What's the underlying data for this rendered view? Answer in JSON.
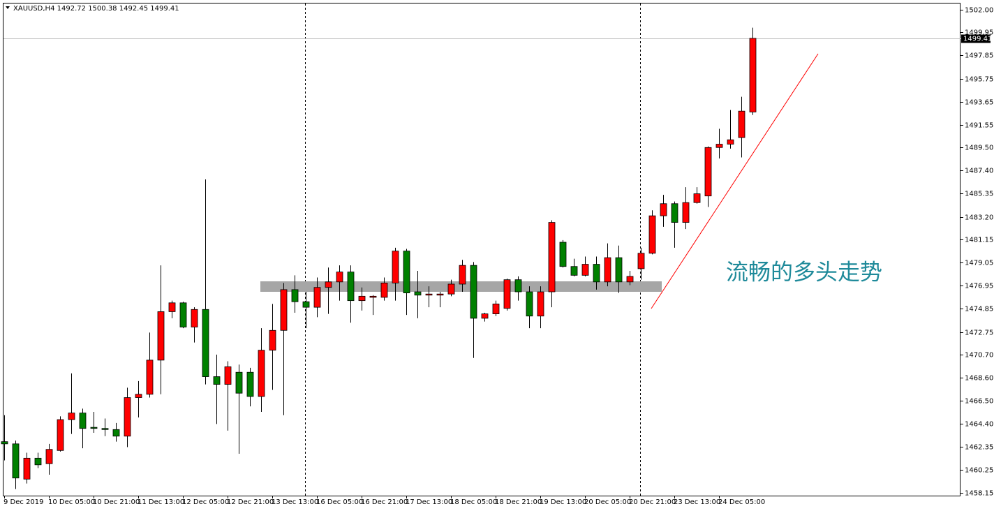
{
  "chart_data": {
    "type": "candlestick",
    "title": "XAUUSD,H4",
    "annotation": "流畅的多头走势",
    "categories": [
      "9 Dec 2019",
      null,
      null,
      null,
      "10 Dec 05:00",
      null,
      null,
      null,
      "10 Dec 21:00",
      null,
      null,
      null,
      "11 Dec 13:00",
      null,
      null,
      null,
      "12 Dec 05:00",
      null,
      null,
      null,
      "12 Dec 21:00",
      null,
      null,
      null,
      "13 Dec 13:00",
      null,
      null,
      null,
      "16 Dec 05:00",
      null,
      null,
      null,
      "16 Dec 21:00",
      null,
      null,
      null,
      "17 Dec 13:00",
      null,
      null,
      null,
      "18 Dec 05:00",
      null,
      null,
      null,
      "18 Dec 21:00",
      null,
      null,
      null,
      "19 Dec 13:00",
      null,
      null,
      null,
      "20 Dec 05:00",
      null,
      null,
      null,
      "20 Dec 21:00",
      null,
      null,
      null,
      "23 Dec 13:00",
      null,
      null,
      null,
      "24 Dec 05:00",
      null,
      null,
      null
    ],
    "open": [
      1462.8,
      1462.6,
      1459.4,
      1461.3,
      1460.8,
      1462.0,
      1464.8,
      1465.4,
      1464.1,
      1464.0,
      1463.9,
      1463.3,
      1466.8,
      1467.1,
      1470.2,
      1474.6,
      1475.4,
      1473.2,
      1474.8,
      1468.7,
      1468.0,
      1469.1,
      1469.1,
      1466.9,
      1471.1,
      1472.9,
      1476.6,
      1475.5,
      1475.0,
      1476.8,
      1477.3,
      1478.2,
      1475.6,
      1475.9,
      1475.9,
      1477.2,
      1480.1,
      1476.4,
      1476.1,
      1476.1,
      1476.2,
      1477.1,
      1478.8,
      1474.0,
      1474.4,
      1474.9,
      1477.5,
      1476.4,
      1474.2,
      1476.4,
      1480.9,
      1478.7,
      1477.9,
      1478.9,
      1477.3,
      1479.5,
      1477.3,
      1478.5,
      1479.9,
      1483.3,
      1484.4,
      1482.7,
      1484.5,
      1485.1,
      1489.5,
      1489.8,
      1490.4,
      1492.72
    ],
    "high": [
      1465.2,
      1462.9,
      1461.8,
      1461.8,
      1462.6,
      1465.1,
      1469.0,
      1465.8,
      1465.5,
      1464.9,
      1464.5,
      1467.7,
      1468.3,
      1472.7,
      1478.8,
      1475.6,
      1475.5,
      1475.0,
      1486.6,
      1470.7,
      1470.1,
      1469.8,
      1469.5,
      1473.1,
      1475.3,
      1477.2,
      1477.9,
      1476.4,
      1477.7,
      1478.6,
      1478.8,
      1478.8,
      1476.8,
      1476.1,
      1477.7,
      1480.4,
      1480.3,
      1478.3,
      1476.9,
      1476.4,
      1477.5,
      1479.3,
      1479.1,
      1474.5,
      1475.6,
      1477.6,
      1477.8,
      1476.9,
      1476.9,
      1482.9,
      1481.1,
      1479.4,
      1479.6,
      1479.6,
      1480.8,
      1480.6,
      1478.3,
      1480.4,
      1483.8,
      1485.2,
      1484.6,
      1485.9,
      1485.9,
      1489.6,
      1491.2,
      1492.9,
      1494.1,
      1500.38
    ],
    "low": [
      1461.1,
      1458.5,
      1459.0,
      1460.4,
      1459.8,
      1461.9,
      1463.5,
      1462.2,
      1463.6,
      1463.3,
      1462.8,
      1462.3,
      1465.0,
      1466.8,
      1467.1,
      1474.0,
      1473.1,
      1471.8,
      1468.0,
      1464.4,
      1463.8,
      1461.7,
      1466.0,
      1465.5,
      1467.5,
      1465.2,
      1474.5,
      1473.1,
      1474.1,
      1474.4,
      1475.6,
      1473.6,
      1474.7,
      1474.3,
      1475.6,
      1475.6,
      1474.3,
      1474.0,
      1475.0,
      1475.0,
      1476.0,
      1476.4,
      1470.4,
      1473.7,
      1474.2,
      1474.7,
      1475.6,
      1473.1,
      1473.1,
      1475.0,
      1478.6,
      1477.8,
      1477.8,
      1476.6,
      1476.9,
      1476.3,
      1477.0,
      1477.5,
      1479.8,
      1482.3,
      1480.4,
      1482.1,
      1484.4,
      1484.1,
      1488.5,
      1489.4,
      1488.6,
      1492.45
    ],
    "close": [
      1462.6,
      1459.5,
      1461.3,
      1460.7,
      1462.1,
      1464.8,
      1465.4,
      1464.0,
      1464.0,
      1463.9,
      1463.3,
      1466.8,
      1467.1,
      1470.2,
      1474.6,
      1475.4,
      1473.2,
      1474.8,
      1468.7,
      1468.0,
      1469.6,
      1467.2,
      1466.9,
      1471.1,
      1472.9,
      1476.6,
      1475.5,
      1475.0,
      1476.8,
      1477.3,
      1478.2,
      1475.6,
      1476.0,
      1476.0,
      1477.2,
      1480.1,
      1476.3,
      1476.1,
      1476.2,
      1476.2,
      1477.1,
      1478.8,
      1474.0,
      1474.4,
      1475.3,
      1477.5,
      1476.4,
      1474.2,
      1476.4,
      1482.7,
      1478.7,
      1477.9,
      1478.9,
      1477.3,
      1479.5,
      1477.3,
      1477.8,
      1479.9,
      1483.3,
      1484.4,
      1482.7,
      1484.5,
      1485.3,
      1489.5,
      1489.8,
      1490.2,
      1492.8,
      1499.41
    ],
    "up_color": "#ff0000",
    "down_color": "#008000",
    "ylim": [
      1457.9,
      1502.57
    ],
    "yticks": [
      {
        "value": 1502,
        "label": "1502.00"
      },
      1499.95,
      1497.85,
      1495.75,
      1493.65,
      1491.55,
      {
        "value": 1489.5,
        "label": "1489.50"
      },
      {
        "value": 1487.4,
        "label": "1487.40"
      },
      1485.35,
      {
        "value": 1483.2,
        "label": "1483.20"
      },
      1481.15,
      1479.05,
      1476.95,
      1474.85,
      1472.75,
      {
        "value": 1470.7,
        "label": "1470.70"
      },
      {
        "value": 1468.6,
        "label": "1468.60"
      },
      {
        "value": 1466.5,
        "label": "1466.50"
      },
      {
        "value": 1464.4,
        "label": "1464.40"
      },
      1462.35,
      1460.25,
      1458.15
    ],
    "grid": false
  }
}
